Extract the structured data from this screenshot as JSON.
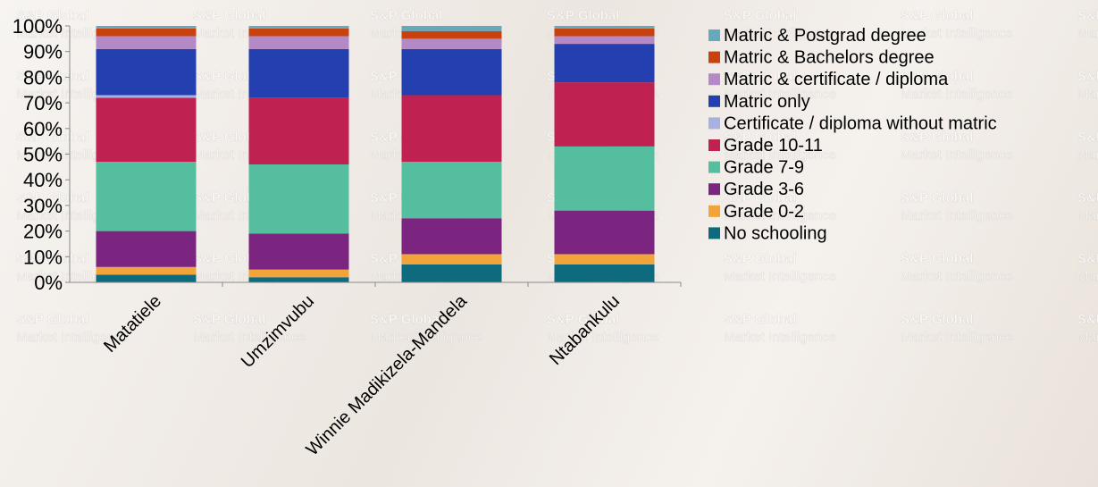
{
  "chart_data": {
    "type": "bar",
    "stacked": true,
    "percent": true,
    "title": "",
    "xlabel": "",
    "ylabel": "",
    "ylim": [
      0,
      100
    ],
    "yticks": [
      "0%",
      "10%",
      "20%",
      "30%",
      "40%",
      "50%",
      "60%",
      "70%",
      "80%",
      "90%",
      "100%"
    ],
    "grid": false,
    "legend_position": "right",
    "categories": [
      "Matatiele",
      "Umzimvubu",
      "Winnie Madikizela-Mandela",
      "Ntabankulu"
    ],
    "series": [
      {
        "name": "No schooling",
        "color": "#0e6b7e",
        "values": [
          3,
          2,
          7,
          7
        ]
      },
      {
        "name": "Grade 0-2",
        "color": "#f2a33a",
        "values": [
          3,
          3,
          4,
          4
        ]
      },
      {
        "name": "Grade 3-6",
        "color": "#7b2480",
        "values": [
          14,
          14,
          14,
          17
        ]
      },
      {
        "name": "Grade 7-9",
        "color": "#55be9f",
        "values": [
          27,
          27,
          22,
          25
        ]
      },
      {
        "name": "Grade 10-11",
        "color": "#bf2150",
        "values": [
          25,
          26,
          26,
          25
        ]
      },
      {
        "name": "Certificate / diploma without matric",
        "color": "#a9b1e0",
        "values": [
          1,
          0,
          0,
          0
        ]
      },
      {
        "name": "Matric only",
        "color": "#2440b0",
        "values": [
          18,
          19,
          18,
          15
        ]
      },
      {
        "name": "Matric & certificate / diploma",
        "color": "#b48ac6",
        "values": [
          5,
          5,
          4,
          3
        ]
      },
      {
        "name": "Matric & Bachelors degree",
        "color": "#c8420f",
        "values": [
          3,
          3,
          3,
          3
        ]
      },
      {
        "name": "Matric & Postgrad degree",
        "color": "#64a9bd",
        "values": [
          1,
          1,
          2,
          1
        ]
      }
    ]
  },
  "watermark": {
    "line1": "S&P Global",
    "line2": "Market Intelligence"
  }
}
